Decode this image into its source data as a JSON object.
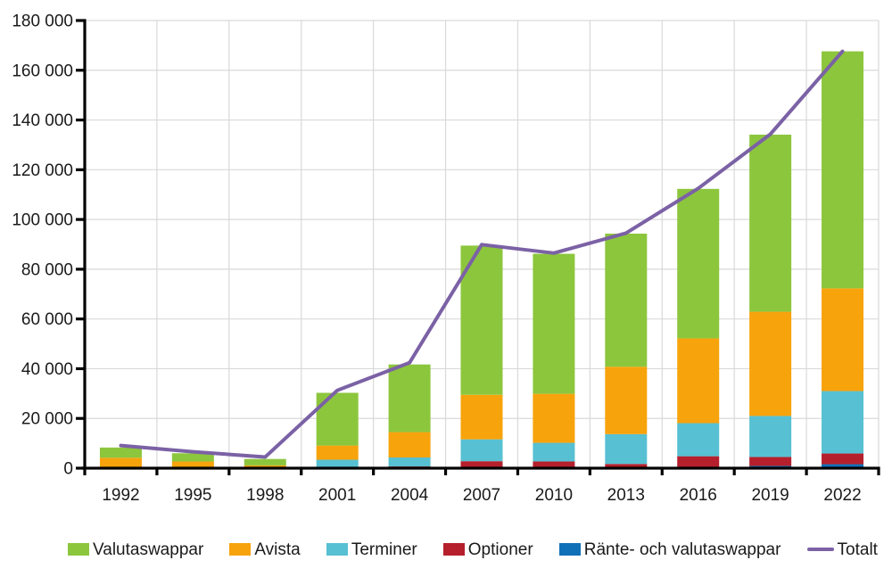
{
  "chart_data": {
    "type": "bar",
    "stacked": true,
    "title": "",
    "xlabel": "",
    "ylabel": "",
    "categories": [
      "1992",
      "1995",
      "1998",
      "2001",
      "2004",
      "2007",
      "2010",
      "2013",
      "2016",
      "2019",
      "2022"
    ],
    "series": [
      {
        "name": "Ränte- och valutaswappar",
        "type": "bar",
        "color": "#0f70b7",
        "values": [
          0,
          0,
          0,
          0,
          0,
          400,
          0,
          0,
          0,
          900,
          1600
        ]
      },
      {
        "name": "Optioner",
        "type": "bar",
        "color": "#b5202c",
        "values": [
          0,
          0,
          0,
          0,
          700,
          2400,
          2700,
          1700,
          4800,
          3600,
          4300
        ]
      },
      {
        "name": "Terminer",
        "type": "bar",
        "color": "#57c0d2",
        "values": [
          400,
          0,
          0,
          3400,
          3600,
          8800,
          7500,
          12000,
          13300,
          16500,
          25100
        ]
      },
      {
        "name": "Avista",
        "type": "bar",
        "color": "#f7a30c",
        "values": [
          3800,
          2700,
          1100,
          5700,
          10200,
          17900,
          19700,
          27100,
          34100,
          41900,
          41300
        ]
      },
      {
        "name": "Valutaswappar",
        "type": "bar",
        "color": "#8cc63d",
        "values": [
          4100,
          3300,
          2600,
          21200,
          27200,
          60000,
          56300,
          53500,
          60100,
          71200,
          95300
        ]
      },
      {
        "name": "Totalt",
        "type": "line",
        "color": "#7b61a5",
        "values": [
          9100,
          6600,
          4500,
          31300,
          42400,
          89900,
          86500,
          94500,
          112500,
          134300,
          167600
        ]
      }
    ],
    "ylim": [
      0,
      180000
    ],
    "ytick_step": 20000,
    "ytick_labels": [
      "0",
      "20 000",
      "40 000",
      "60 000",
      "80 000",
      "100 000",
      "120 000",
      "140 000",
      "160 000",
      "180 000"
    ],
    "grid": true,
    "gridline_color": "#d9d9d9",
    "axis_color": "#000000",
    "legend_position": "bottom",
    "legend": [
      {
        "label": "Valutaswappar",
        "color": "#8cc63d",
        "marker": "square"
      },
      {
        "label": "Avista",
        "color": "#f7a30c",
        "marker": "square"
      },
      {
        "label": "Terminer",
        "color": "#57c0d2",
        "marker": "square"
      },
      {
        "label": "Optioner",
        "color": "#b5202c",
        "marker": "square"
      },
      {
        "label": "Ränte- och valutaswappar",
        "color": "#0f70b7",
        "marker": "square"
      },
      {
        "label": "Totalt",
        "color": "#7b61a5",
        "marker": "line"
      }
    ]
  }
}
